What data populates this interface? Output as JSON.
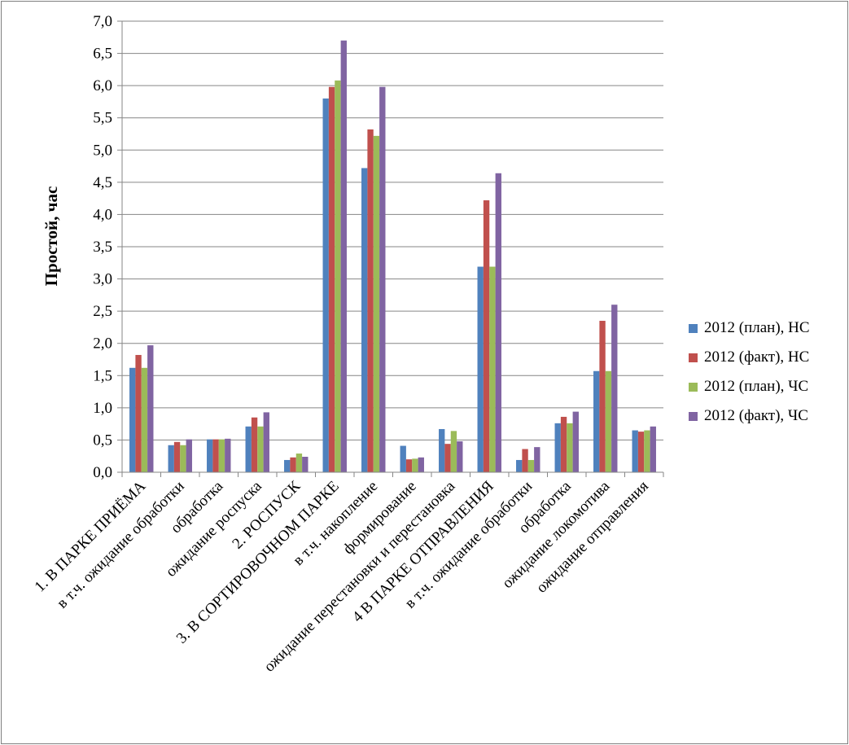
{
  "chart_data": {
    "type": "bar",
    "title": "",
    "xlabel": "",
    "ylabel": "Простой, час",
    "ylim": [
      0,
      7.0
    ],
    "ytick_step": 0.5,
    "ytick_labels": [
      "0,0",
      "0,5",
      "1,0",
      "1,5",
      "2,0",
      "2,5",
      "3,0",
      "3,5",
      "4,0",
      "4,5",
      "5,0",
      "5,5",
      "6,0",
      "6,5",
      "7,0"
    ],
    "grid": true,
    "legend_position": "right",
    "categories": [
      "1. В ПАРКЕ ПРИЁМА",
      "в т.ч. ожидание обработки",
      "обработка",
      "ожидание роспуска",
      "2. РОСПУСК",
      "3. В СОРТИРОВОЧНОМ ПАРКЕ",
      "в т.ч. накопление",
      "формирование",
      "ожидание перестановки и перестановка",
      "4 В ПАРКЕ ОТПРАВЛЕНИЯ",
      "в т.ч. ожидание обработки",
      "обработка",
      "ожидание локомотива",
      "ожидание отправления"
    ],
    "series": [
      {
        "name": "2012 (план), НС",
        "color": "#4f81bd",
        "values": [
          1.62,
          0.42,
          0.51,
          0.71,
          0.19,
          5.8,
          4.72,
          0.41,
          0.67,
          3.19,
          0.19,
          0.76,
          1.57,
          0.65
        ]
      },
      {
        "name": "2012 (факт), НС",
        "color": "#c0504d",
        "values": [
          1.82,
          0.47,
          0.51,
          0.85,
          0.23,
          5.98,
          5.32,
          0.2,
          0.44,
          4.22,
          0.36,
          0.86,
          2.35,
          0.63
        ]
      },
      {
        "name": "2012 (план), ЧС",
        "color": "#9bbb59",
        "values": [
          1.62,
          0.42,
          0.51,
          0.71,
          0.29,
          6.08,
          5.22,
          0.21,
          0.64,
          3.19,
          0.19,
          0.76,
          1.57,
          0.65
        ]
      },
      {
        "name": "2012 (факт), ЧС",
        "color": "#8064a2",
        "values": [
          1.97,
          0.51,
          0.52,
          0.93,
          0.24,
          6.7,
          5.98,
          0.23,
          0.48,
          4.64,
          0.39,
          0.94,
          2.6,
          0.71
        ]
      }
    ]
  }
}
